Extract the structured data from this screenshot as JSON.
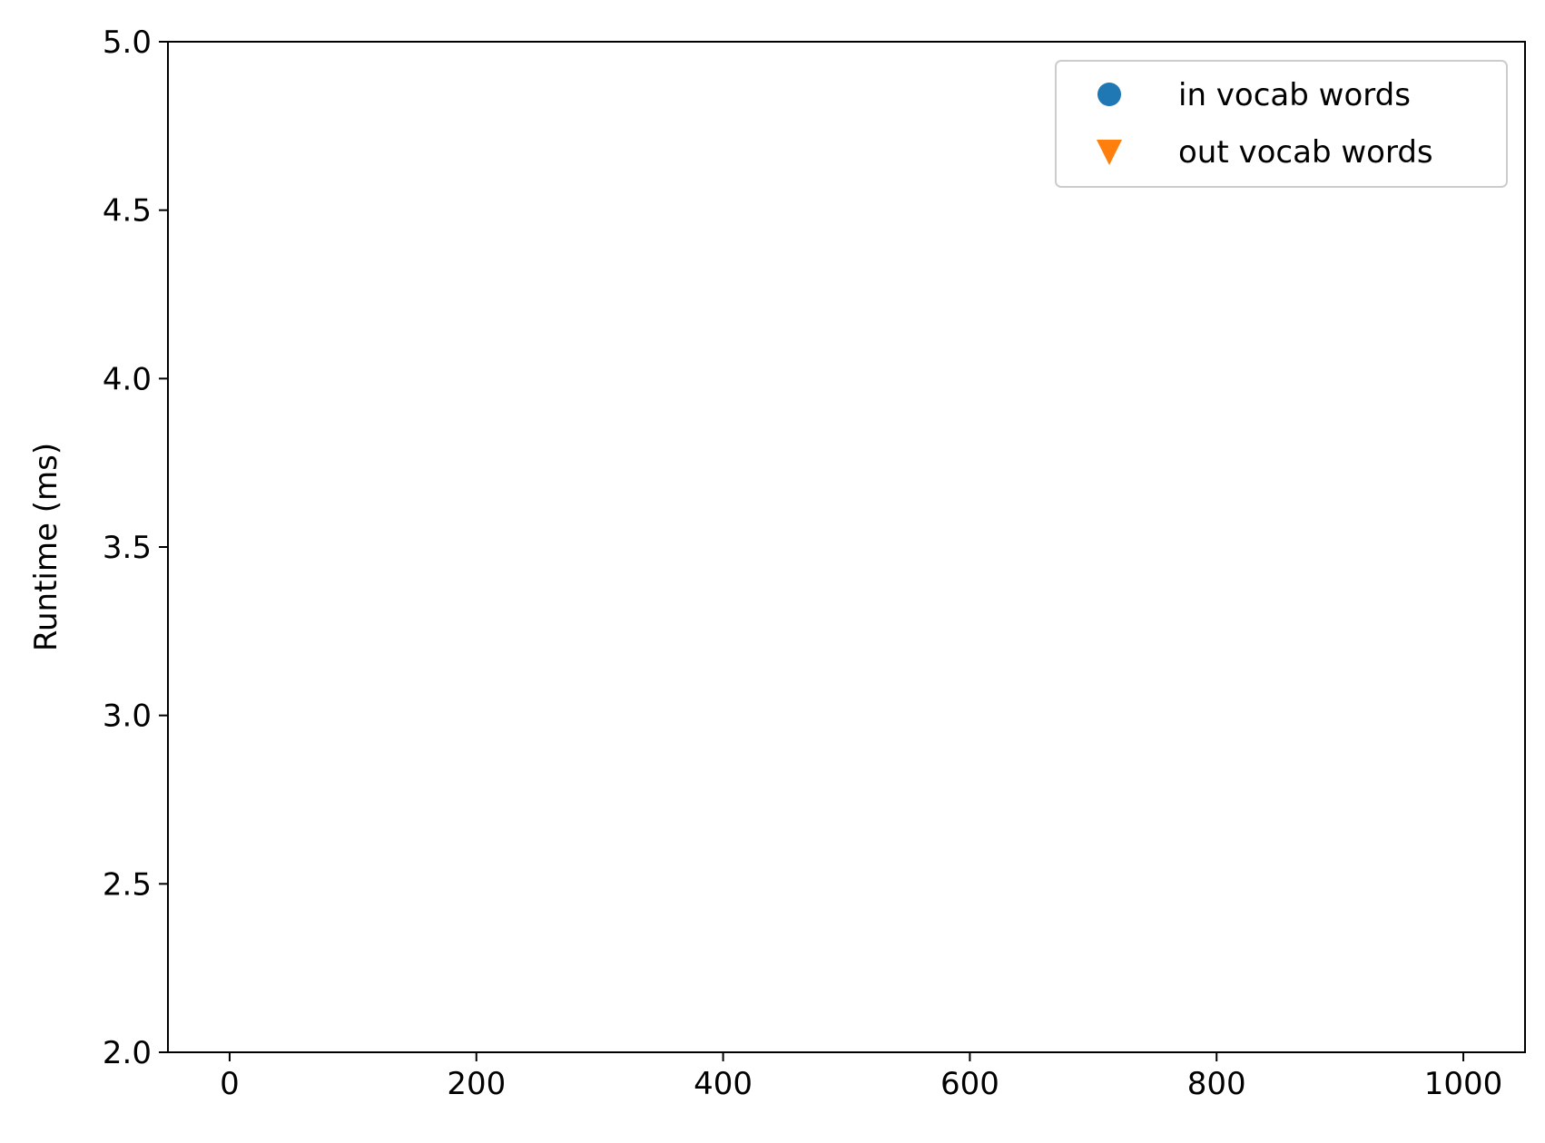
{
  "chart_data": {
    "type": "scatter",
    "title": "",
    "xlabel": "",
    "ylabel": "Runtime (ms)",
    "xlim": [
      -50,
      1050
    ],
    "ylim": [
      2.0,
      5.0
    ],
    "x_ticks": [
      0,
      200,
      400,
      600,
      800,
      1000
    ],
    "x_tick_labels": [
      "0",
      "200",
      "400",
      "600",
      "800",
      "1000"
    ],
    "y_ticks": [
      2.0,
      2.5,
      3.0,
      3.5,
      4.0,
      4.5,
      5.0
    ],
    "y_tick_labels": [
      "2.0",
      "2.5",
      "3.0",
      "3.5",
      "4.0",
      "4.5",
      "5.0"
    ],
    "grid": false,
    "legend_position": "top-right",
    "series": [
      {
        "name": "in vocab words",
        "marker": "circle",
        "color": "#1f77b4",
        "points": []
      },
      {
        "name": "out vocab words",
        "marker": "triangle-down",
        "color": "#ff7f0e",
        "points": []
      }
    ]
  }
}
